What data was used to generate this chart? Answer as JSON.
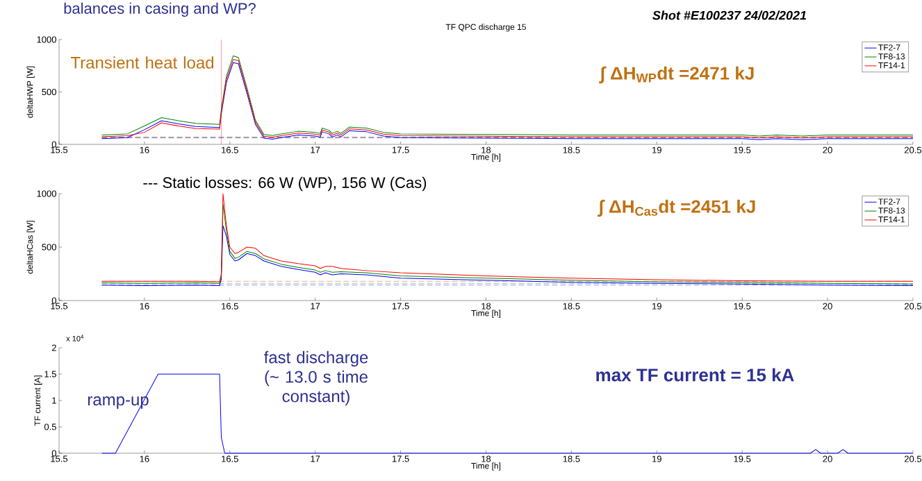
{
  "chart_data": [
    {
      "type": "line",
      "title": "TF QPC discharge 15",
      "xlabel": "Time [h]",
      "ylabel": "deltaHWP [W]",
      "xlim": [
        15.5,
        20.5
      ],
      "xticks": [
        15.5,
        16,
        16.5,
        17,
        17.5,
        18,
        18.5,
        19,
        19.5,
        20,
        20.5
      ],
      "ylim": [
        0,
        1000
      ],
      "yticks": [
        0,
        500,
        1000
      ],
      "legend": "top right",
      "marker": "none",
      "line_style": "solid",
      "x": [
        15.75,
        15.9,
        16.0,
        16.1,
        16.2,
        16.3,
        16.44,
        16.45,
        16.48,
        16.52,
        16.55,
        16.6,
        16.65,
        16.7,
        16.75,
        16.8,
        16.9,
        17.0,
        17.03,
        17.04,
        17.08,
        17.1,
        17.13,
        17.15,
        17.2,
        17.3,
        17.4,
        17.5,
        18.0,
        18.5,
        19.0,
        19.5,
        19.6,
        19.7,
        19.85,
        20.0,
        20.5
      ],
      "series": [
        {
          "name": "TF2-7",
          "color": "#0000ff",
          "values": [
            55,
            65,
            140,
            225,
            195,
            170,
            160,
            290,
            590,
            780,
            770,
            490,
            190,
            60,
            50,
            65,
            90,
            80,
            70,
            120,
            100,
            70,
            90,
            70,
            130,
            120,
            80,
            65,
            60,
            55,
            55,
            55,
            45,
            55,
            45,
            55,
            55
          ]
        },
        {
          "name": "TF8-13",
          "color": "#008000",
          "values": [
            90,
            100,
            175,
            255,
            225,
            200,
            190,
            330,
            650,
            845,
            830,
            540,
            230,
            95,
            85,
            100,
            125,
            115,
            105,
            155,
            135,
            105,
            125,
            105,
            165,
            155,
            115,
            100,
            95,
            90,
            90,
            90,
            80,
            90,
            80,
            90,
            90
          ]
        },
        {
          "name": "TF14-1",
          "color": "#ff0000",
          "values": [
            72,
            82,
            115,
            205,
            175,
            150,
            145,
            310,
            620,
            810,
            800,
            515,
            210,
            78,
            68,
            82,
            108,
            98,
            88,
            138,
            118,
            88,
            108,
            88,
            148,
            138,
            98,
            82,
            78,
            72,
            72,
            72,
            62,
            72,
            62,
            72,
            72
          ]
        }
      ],
      "ref_lines": [
        {
          "axis": "y",
          "value": 70,
          "color": "#008000",
          "line_style": "dashed"
        },
        {
          "axis": "y",
          "value": 66,
          "color": "#ff0000",
          "line_style": "dashed"
        },
        {
          "axis": "y",
          "value": 62,
          "color": "#0000ff",
          "line_style": "dashed"
        },
        {
          "axis": "x",
          "value": 16.45,
          "color": "#ff0000",
          "line_style": "solid"
        }
      ],
      "annotations": [
        "Transient heat load",
        "∫ ΔH$_{WP}$dt =2471 kJ",
        "Shot #E100237 24/02/2021",
        "--- Static losses: 66 W (WP), 156 W (Cas)",
        "balances in casing and WP?"
      ]
    },
    {
      "type": "line",
      "xlabel": "Time [h]",
      "ylabel": "deltaHCas [W]",
      "xlim": [
        15.5,
        20.5
      ],
      "xticks": [
        15.5,
        16,
        16.5,
        17,
        17.5,
        18,
        18.5,
        19,
        19.5,
        20,
        20.5
      ],
      "ylim": [
        0,
        1000
      ],
      "yticks": [
        0,
        500,
        1000
      ],
      "legend": "top right",
      "marker": "none",
      "line_style": "solid",
      "x": [
        15.75,
        16.0,
        16.3,
        16.44,
        16.45,
        16.46,
        16.48,
        16.5,
        16.53,
        16.55,
        16.6,
        16.65,
        16.7,
        16.8,
        16.9,
        17.0,
        17.03,
        17.06,
        17.1,
        17.15,
        17.3,
        17.5,
        18.0,
        18.5,
        19.0,
        19.5,
        20.0,
        20.5
      ],
      "series": [
        {
          "name": "TF2-7",
          "color": "#0000ff",
          "values": [
            145,
            140,
            145,
            140,
            200,
            700,
            600,
            430,
            370,
            380,
            440,
            420,
            370,
            320,
            290,
            265,
            240,
            260,
            240,
            250,
            240,
            210,
            190,
            170,
            160,
            155,
            145,
            140
          ]
        },
        {
          "name": "TF8-13",
          "color": "#008000",
          "values": [
            165,
            160,
            165,
            160,
            230,
            900,
            650,
            460,
            395,
            405,
            460,
            440,
            390,
            340,
            310,
            285,
            265,
            280,
            265,
            270,
            260,
            230,
            210,
            190,
            175,
            170,
            160,
            155
          ]
        },
        {
          "name": "TF14-1",
          "color": "#ff0000",
          "values": [
            180,
            180,
            180,
            175,
            250,
            1000,
            700,
            500,
            440,
            450,
            500,
            490,
            420,
            370,
            345,
            325,
            300,
            320,
            320,
            300,
            280,
            260,
            230,
            210,
            195,
            185,
            180,
            180
          ]
        }
      ],
      "ref_lines": [
        {
          "axis": "y",
          "value": 180,
          "color": "#ff0000",
          "line_style": "dashed"
        },
        {
          "axis": "y",
          "value": 160,
          "color": "#008000",
          "line_style": "dashed"
        },
        {
          "axis": "y",
          "value": 145,
          "color": "#0000ff",
          "line_style": "dashed"
        }
      ],
      "annotations": [
        "∫ ΔH$_{Cas}$dt =2451 kJ"
      ]
    },
    {
      "type": "line",
      "xlabel": "Time [h]",
      "ylabel": "TF current [A]",
      "xlim": [
        15.5,
        20.5
      ],
      "xticks": [
        15.5,
        16,
        16.5,
        17,
        17.5,
        18,
        18.5,
        19,
        19.5,
        20,
        20.5
      ],
      "ylim": [
        0,
        2
      ],
      "yticks": [
        0,
        0.5,
        1,
        1.5,
        2
      ],
      "marker": "none",
      "line_style": "solid",
      "x": [
        15.75,
        15.83,
        16.08,
        16.44,
        16.45,
        16.47,
        19.9,
        19.93,
        19.96,
        20.06,
        20.09,
        20.12,
        20.5
      ],
      "series": [
        {
          "color": "#0000ff",
          "values": [
            0,
            0,
            1.5,
            1.5,
            0.3,
            0,
            0,
            0.07,
            0,
            0,
            0.07,
            0,
            0
          ]
        }
      ],
      "annotations": [
        "x 10$^{4}$",
        "ramp-up",
        "fast discharge (~ 13.0 s time constant)",
        "max TF current = 15 kA"
      ]
    }
  ]
}
